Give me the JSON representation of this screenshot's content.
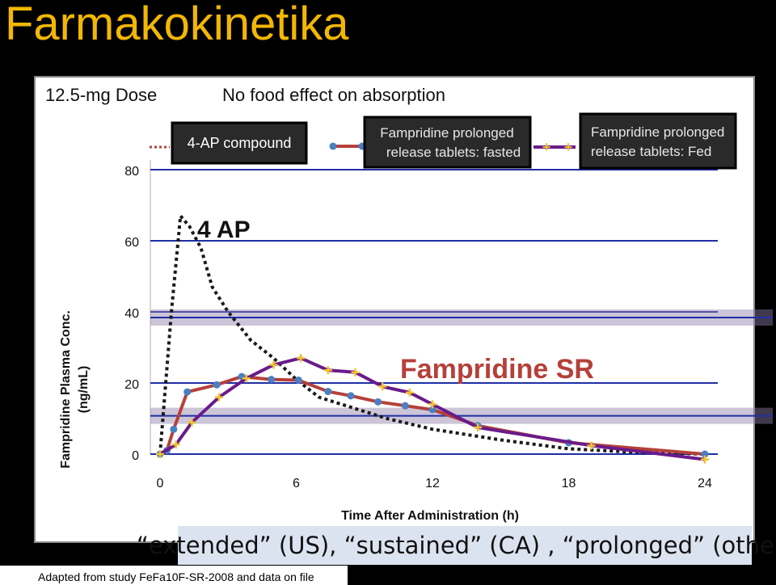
{
  "slide": {
    "title": "Farmakokinetika",
    "footnote": "extended (US), “sustained” (CA) , “prolonged” (other)",
    "footnote_full": "“extended” (US), “sustained” (CA) , “prolonged” (other)",
    "source": "Adapted from study FeFa10F-SR-2008 and data on file"
  },
  "colors": {
    "title": "#f2b705",
    "ap_dotted": "#1a1a1a",
    "fasted": "#b5403a",
    "fasted_marker": "#4a7fc1",
    "fed": "#6a1b8a",
    "fed_marker": "#f2c230",
    "gridline": "#1f2fa6"
  },
  "chart_data": {
    "type": "line",
    "heading_left": "12.5-mg Dose",
    "heading_right": "No food effect on absorption",
    "xlabel": "Time After Administration (h)",
    "ylabel": "Fampridine Plasma Conc. (ng/mL)",
    "xlim": [
      0,
      24
    ],
    "ylim": [
      0,
      80
    ],
    "x_ticks": [
      0,
      6,
      12,
      18,
      24
    ],
    "y_ticks": [
      0,
      20,
      40,
      60,
      80
    ],
    "annotations": {
      "ap_label": "4 AP",
      "sr_label": "Fampridine SR"
    },
    "legend": [
      {
        "name": "4-AP compound",
        "style": "dotted"
      },
      {
        "name": "Fampridine prolonged release tablets: fasted",
        "style": "line-circle"
      },
      {
        "name": "Fampridine prolonged release tablets: Fed",
        "style": "line-plus"
      }
    ],
    "series": [
      {
        "name": "4-AP compound",
        "x": [
          0,
          0.5,
          0.9,
          1.3,
          1.8,
          2.3,
          3,
          4,
          5,
          6,
          7,
          8,
          9,
          10,
          12,
          15,
          18,
          21,
          24
        ],
        "y": [
          0,
          40,
          67,
          64,
          58,
          47,
          40,
          32,
          27,
          21,
          16,
          14,
          12,
          10,
          7,
          4,
          1.5,
          0.5,
          0
        ]
      },
      {
        "name": "Fampridine prolonged release tablets: fasted",
        "x": [
          0,
          0.3,
          0.6,
          1.2,
          2.5,
          3.6,
          4.9,
          6.1,
          7.4,
          8.4,
          9.6,
          10.8,
          12,
          14,
          18,
          24
        ],
        "y": [
          0,
          1,
          7,
          17.5,
          19.5,
          21.8,
          21,
          20.8,
          17.6,
          16.4,
          14.7,
          13.6,
          12.5,
          8,
          3.2,
          0
        ]
      },
      {
        "name": "Fampridine prolonged release tablets: Fed",
        "x": [
          0,
          0.7,
          1.4,
          2.6,
          3.8,
          5,
          6.2,
          7.4,
          8.6,
          9.8,
          11,
          12,
          14,
          19,
          24
        ],
        "y": [
          0,
          2.7,
          8.9,
          16,
          21.3,
          25.1,
          27,
          23.6,
          23,
          19,
          17.3,
          14,
          7.5,
          2.4,
          -1.5
        ]
      }
    ]
  }
}
